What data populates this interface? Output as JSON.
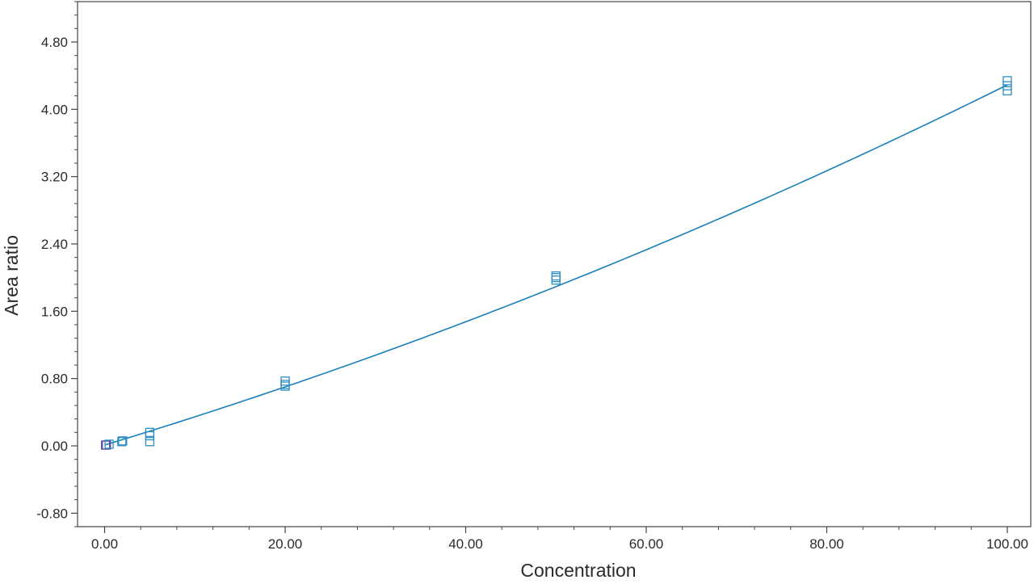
{
  "chart_data": {
    "type": "scatter",
    "title": "",
    "xlabel": "Concentration",
    "ylabel": "Area ratio",
    "xlim": [
      -3.0,
      102.6
    ],
    "ylim": [
      -0.96,
      5.28
    ],
    "grid": false,
    "legend": "none",
    "x_ticks": [
      0,
      20,
      40,
      60,
      80,
      100
    ],
    "x_tick_labels": [
      "0.00",
      "20.00",
      "40.00",
      "60.00",
      "80.00",
      "100.00"
    ],
    "y_ticks": [
      -0.8,
      0.0,
      0.8,
      1.6,
      2.4,
      3.2,
      4.0,
      4.8
    ],
    "y_tick_labels": [
      "-0.80",
      "0.00",
      "0.80",
      "1.60",
      "2.40",
      "3.20",
      "4.00",
      "4.80"
    ],
    "x_minor_step": 4,
    "y_minor_step": 0.16,
    "colors": {
      "line": "#1a7fb8",
      "marker": "#2f8ec4",
      "marker_low": "#5a4ea8",
      "axis": "#444444"
    },
    "series": [
      {
        "type": "scatter",
        "marker": "open-square",
        "points": [
          {
            "x": 0.1,
            "y": 0.01,
            "low": true
          },
          {
            "x": 0.2,
            "y": 0.01,
            "low": true
          },
          {
            "x": 0.5,
            "y": 0.02,
            "low": false
          },
          {
            "x": 1.9,
            "y": 0.05,
            "low": false
          },
          {
            "x": 2.0,
            "y": 0.06,
            "low": false
          },
          {
            "x": 5.0,
            "y": 0.05,
            "low": false
          },
          {
            "x": 5.0,
            "y": 0.12,
            "low": false
          },
          {
            "x": 5.0,
            "y": 0.16,
            "low": false
          },
          {
            "x": 20.0,
            "y": 0.71,
            "low": false
          },
          {
            "x": 20.0,
            "y": 0.73,
            "low": false
          },
          {
            "x": 20.0,
            "y": 0.77,
            "low": false
          },
          {
            "x": 50.0,
            "y": 1.97,
            "low": false
          },
          {
            "x": 50.0,
            "y": 2.0,
            "low": false
          },
          {
            "x": 50.0,
            "y": 2.02,
            "low": false
          },
          {
            "x": 100.0,
            "y": 4.22,
            "low": false
          },
          {
            "x": 100.0,
            "y": 4.28,
            "low": false
          },
          {
            "x": 100.0,
            "y": 4.34,
            "low": false
          }
        ]
      },
      {
        "type": "line",
        "fit": "quadratic",
        "coefficients": [
          0.01,
          0.0325,
          0.000103
        ],
        "x_range": [
          0.0,
          100.0
        ]
      }
    ]
  }
}
